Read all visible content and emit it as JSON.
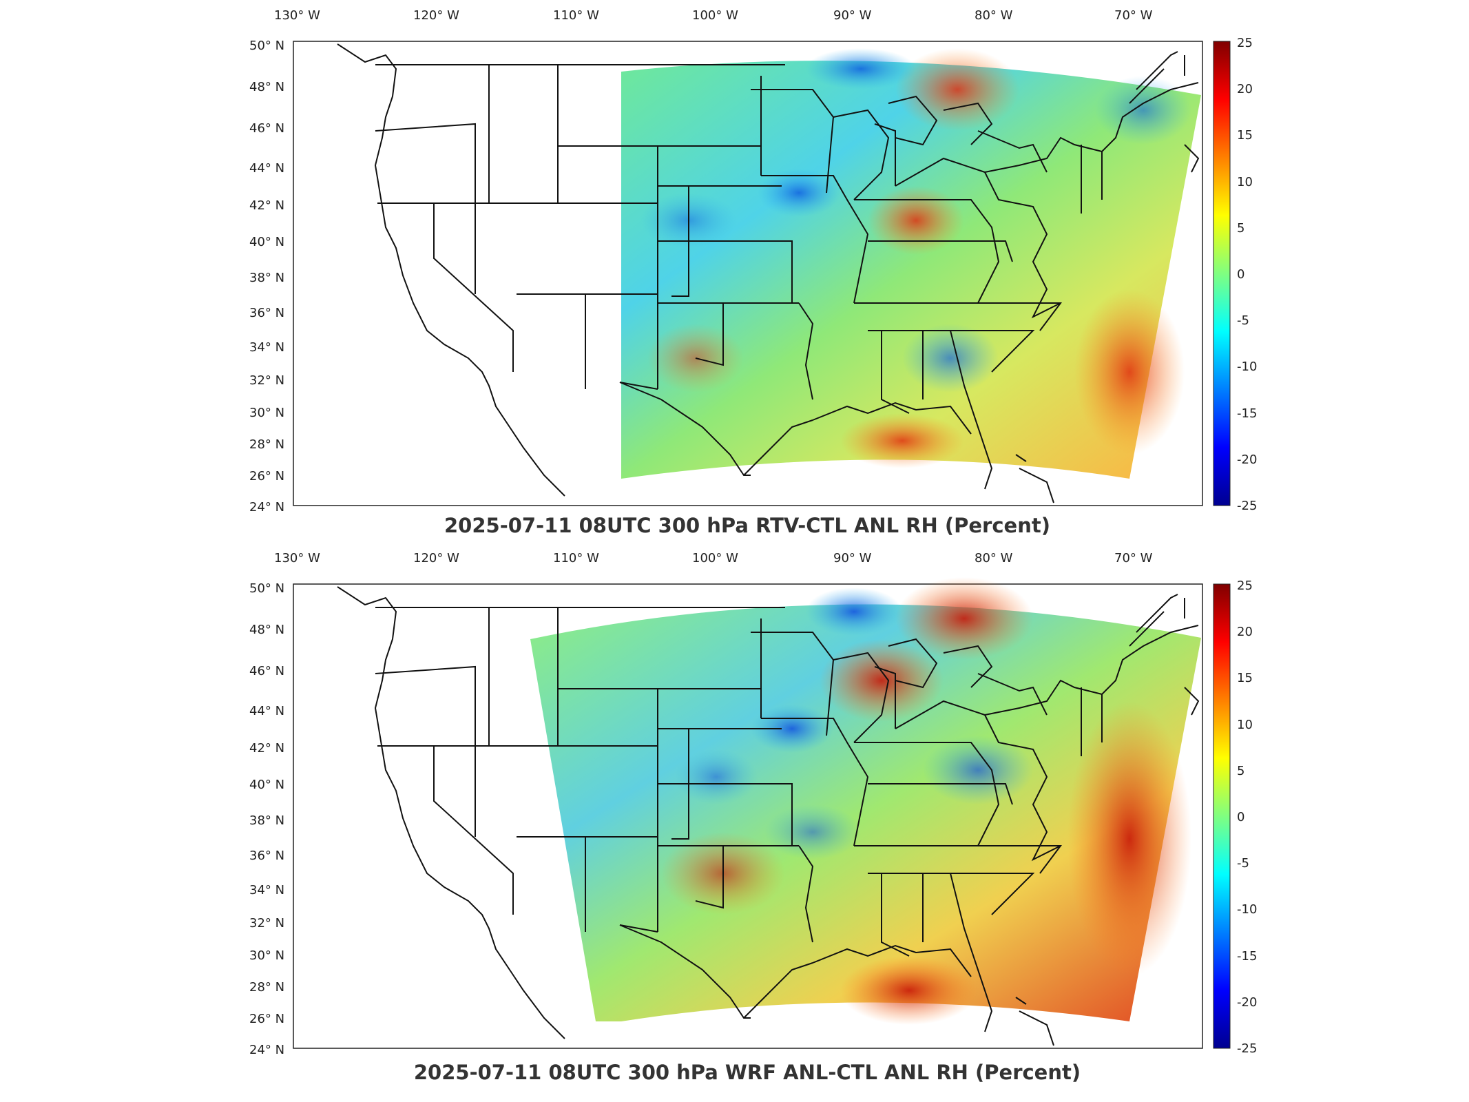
{
  "maps": [
    {
      "title": "2025-07-11 08UTC 300 hPa RTV-CTL ANL RH (Percent)",
      "lon_labels": [
        "130° W",
        "120° W",
        "110° W",
        "100° W",
        "90° W",
        "80° W",
        "70° W"
      ],
      "lat_labels": [
        "50° N",
        "48° N",
        "46° N",
        "44° N",
        "42° N",
        "40° N",
        "38° N",
        "36° N",
        "34° N",
        "32° N",
        "30° N",
        "28° N",
        "26° N",
        "24° N"
      ],
      "colorbar": {
        "ticks": [
          "25",
          "20",
          "15",
          "10",
          "5",
          "0",
          "-5",
          "-10",
          "-15",
          "-20",
          "-25"
        ],
        "range": [
          -25,
          25
        ],
        "colormap": "jet"
      },
      "extent": {
        "lon": [
          -131,
          -64
        ],
        "lat": [
          24,
          50
        ]
      }
    },
    {
      "title": "2025-07-11 08UTC 300 hPa WRF ANL-CTL ANL RH (Percent)",
      "lon_labels": [
        "130° W",
        "120° W",
        "110° W",
        "100° W",
        "90° W",
        "80° W",
        "70° W"
      ],
      "lat_labels": [
        "50° N",
        "48° N",
        "46° N",
        "44° N",
        "42° N",
        "40° N",
        "38° N",
        "36° N",
        "34° N",
        "32° N",
        "30° N",
        "28° N",
        "26° N",
        "24° N"
      ],
      "colorbar": {
        "ticks": [
          "25",
          "20",
          "15",
          "10",
          "5",
          "0",
          "-5",
          "-10",
          "-15",
          "-20",
          "-25"
        ],
        "range": [
          -25,
          25
        ],
        "colormap": "jet"
      },
      "extent": {
        "lon": [
          -131,
          -64
        ],
        "lat": [
          24,
          50
        ]
      }
    }
  ]
}
